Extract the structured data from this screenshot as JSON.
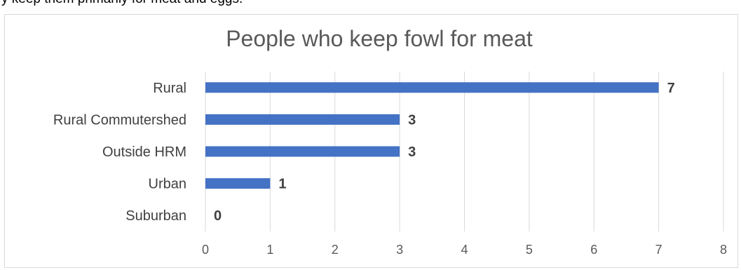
{
  "top_text": "y keep them primarily for meat and eggs.",
  "chart_data": {
    "type": "bar",
    "orientation": "horizontal",
    "title": "People who keep fowl for meat",
    "categories": [
      "Rural",
      "Rural Commutershed",
      "Outside HRM",
      "Urban",
      "Suburban"
    ],
    "values": [
      7,
      3,
      3,
      1,
      0
    ],
    "value_labels": [
      "7",
      "3",
      "3",
      "1",
      "0"
    ],
    "xlim": [
      0,
      8
    ],
    "x_ticks": [
      "0",
      "1",
      "2",
      "3",
      "4",
      "5",
      "6",
      "7",
      "8"
    ],
    "xlabel": "",
    "ylabel": "",
    "grid": true,
    "legend": "none",
    "bar_color": "#4472c4",
    "grid_color": "#d9d9d9",
    "text_color": "#595959",
    "label_color": "#404040"
  }
}
